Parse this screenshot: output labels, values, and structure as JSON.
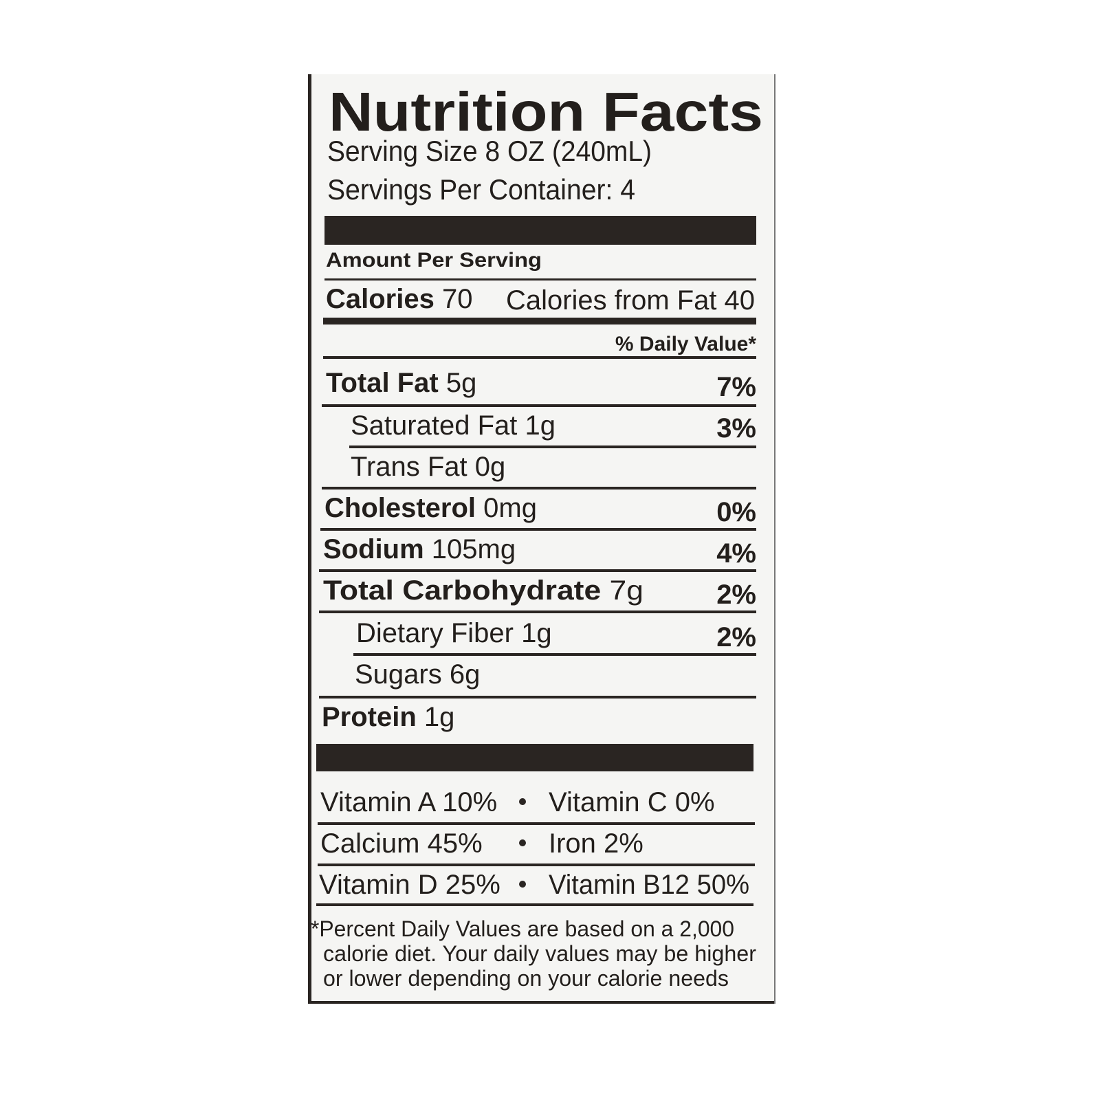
{
  "title": "Nutrition Facts",
  "serving_size": "Serving Size 8 OZ (240mL)",
  "servings_per_container": "Servings Per Container: 4",
  "amount_per_serving": "Amount Per Serving",
  "calories": {
    "label": "Calories",
    "value": "70"
  },
  "calories_from_fat": "Calories from Fat 40",
  "daily_value_header": "% Daily Value*",
  "nutrients": [
    {
      "name": "Total Fat",
      "amount": "5g",
      "dv": "7%"
    },
    {
      "name": "Saturated Fat",
      "amount": "1g",
      "dv": "3%"
    },
    {
      "name": "Trans Fat",
      "amount": "0g"
    },
    {
      "name": "Cholesterol",
      "amount": "0mg",
      "dv": "0%"
    },
    {
      "name": "Sodium",
      "amount": "105mg",
      "dv": "4%"
    },
    {
      "name": "Total Carbohydrate",
      "amount": "7g",
      "dv": "2%"
    },
    {
      "name": "Dietary Fiber",
      "amount": "1g",
      "dv": "2%"
    },
    {
      "name": "Sugars",
      "amount": "6g"
    },
    {
      "name": "Protein",
      "amount": "1g"
    }
  ],
  "vitamins": [
    [
      "Vitamin A 10%",
      "Vitamin C 0%"
    ],
    [
      "Calcium 45%",
      "Iron 2%"
    ],
    [
      "Vitamin D 25%",
      "Vitamin B12 50%"
    ]
  ],
  "footnote": [
    "*Percent Daily Values are based on a 2,000",
    "calorie diet. Your daily values may be higher",
    "or lower depending on your calorie needs"
  ]
}
